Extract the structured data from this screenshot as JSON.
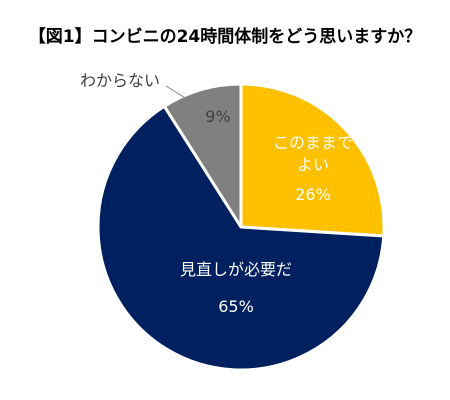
{
  "chart_data": {
    "type": "pie",
    "title": "【図1】コンビニの24時間体制をどう思いますか？",
    "slices": [
      {
        "label": "このままで\nよい",
        "value": 26,
        "value_label": "26%",
        "color": "#FFC000",
        "text_color": "#FFFFFF"
      },
      {
        "label": "見直しが必要だ",
        "value": 65,
        "value_label": "65%",
        "color": "#002060",
        "text_color": "#FFFFFF"
      },
      {
        "label": "わからない",
        "value": 9,
        "value_label": "9%",
        "color": "#808080",
        "text_color": "#404040"
      }
    ],
    "start_angle_deg": 0,
    "direction": "clockwise",
    "legend": "none"
  }
}
